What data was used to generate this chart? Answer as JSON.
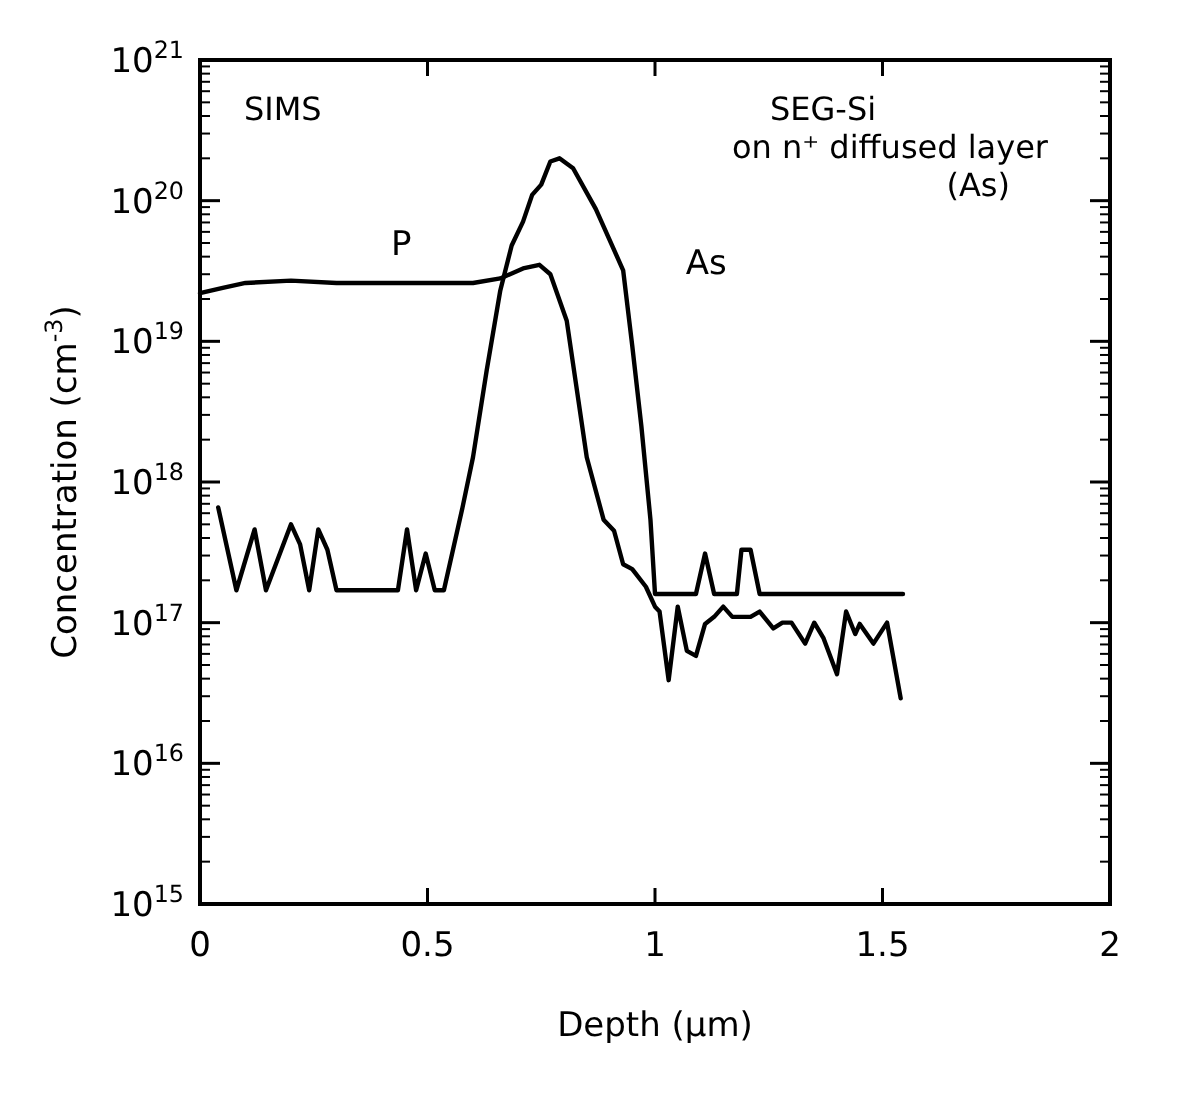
{
  "chart_data": {
    "type": "line",
    "xlabel": "Depth (μm)",
    "ylabel": "Concentration  (cm$^{-3}$)",
    "log": "y",
    "grid": false,
    "marker": "none",
    "line_style": "solid",
    "xlim": [
      0,
      2
    ],
    "xticks": [
      {
        "value": 0,
        "label": "0"
      },
      0.5,
      {
        "value": 1,
        "label": "1"
      },
      1.5,
      {
        "value": 2,
        "label": "2"
      }
    ],
    "ylim": [
      1000000000000000.0,
      1e+21
    ],
    "yticks": [
      {
        "value": 1000000000000000.0,
        "label": "10$^{15}$"
      },
      {
        "value": 1e+16,
        "label": "10$^{16}$"
      },
      {
        "value": 1e+17,
        "label": "10$^{17}$"
      },
      {
        "value": 1e+18,
        "label": "10$^{18}$"
      },
      {
        "value": 1e+19,
        "label": "10$^{19}$"
      },
      {
        "value": 1e+20,
        "label": "10$^{20}$"
      },
      {
        "value": 1e+21,
        "label": "10$^{21}$"
      }
    ],
    "annotations": [
      "SIMS",
      "SEG-Si\non n⁺ diffused layer\n(As)"
    ],
    "series": [
      {
        "name": "P",
        "color": "#000000",
        "x": [
          0,
          0.05,
          0.1,
          0.2,
          0.3,
          0.4,
          0.5,
          0.6,
          0.66,
          0.71,
          0.746,
          0.77,
          0.806,
          0.85,
          0.887,
          0.91,
          0.93,
          0.95,
          0.98,
          1.0,
          1.01,
          1.03,
          1.05,
          1.07,
          1.09,
          1.11,
          1.13,
          1.15,
          1.17,
          1.21,
          1.23,
          1.26,
          1.28,
          1.3,
          1.33,
          1.35,
          1.37,
          1.4,
          1.42,
          1.44,
          1.45,
          1.48,
          1.51,
          1.54
        ],
        "values": [
          2.2e+19,
          2.4e+19,
          2.6e+19,
          2.7e+19,
          2.6e+19,
          2.6e+19,
          2.6e+19,
          2.6e+19,
          2.8e+19,
          3.3e+19,
          3.5e+19,
          3e+19,
          1.4e+19,
          1.5e+18,
          5.4e+17,
          4.5e+17,
          2.6e+17,
          2.4e+17,
          1.8e+17,
          1.3e+17,
          1.2e+17,
          3.9e+16,
          1.3e+17,
          6.3e+16,
          5.8e+16,
          9.8e+16,
          1.1e+17,
          1.3e+17,
          1.1e+17,
          1.1e+17,
          1.2e+17,
          9.1e+16,
          1e+17,
          1e+17,
          7.1e+16,
          1e+17,
          7.8e+16,
          4.3e+16,
          1.2e+17,
          8.3e+16,
          9.8e+16,
          7.1e+16,
          1e+17,
          2.9e+16
        ]
      },
      {
        "name": "As",
        "color": "#000000",
        "x": [
          0.04,
          0.08,
          0.12,
          0.145,
          0.2,
          0.22,
          0.24,
          0.26,
          0.28,
          0.3,
          0.435,
          0.455,
          0.475,
          0.496,
          0.516,
          0.536,
          0.577,
          0.6,
          0.63,
          0.66,
          0.685,
          0.71,
          0.73,
          0.75,
          0.77,
          0.79,
          0.82,
          0.87,
          0.93,
          0.95,
          0.97,
          0.99,
          1.0,
          1.09,
          1.11,
          1.13,
          1.18,
          1.19,
          1.21,
          1.23,
          1.545
        ],
        "values": [
          6.6e+17,
          1.7e+17,
          4.6e+17,
          1.7e+17,
          5e+17,
          3.6e+17,
          1.7e+17,
          4.6e+17,
          3.3e+17,
          1.7e+17,
          1.7e+17,
          4.6e+17,
          1.7e+17,
          3.1e+17,
          1.7e+17,
          1.7e+17,
          6.6e+17,
          1.5e+18,
          6.2e+18,
          2.3e+19,
          4.8e+19,
          7.1e+19,
          1.1e+20,
          1.3e+20,
          1.9e+20,
          2e+20,
          1.7e+20,
          8.7e+19,
          3.2e+19,
          9.3e+18,
          2.5e+18,
          5.4e+17,
          1.6e+17,
          1.6e+17,
          3.1e+17,
          1.6e+17,
          1.6e+17,
          3.3e+17,
          3.3e+17,
          1.6e+17,
          1.6e+17
        ]
      }
    ]
  }
}
